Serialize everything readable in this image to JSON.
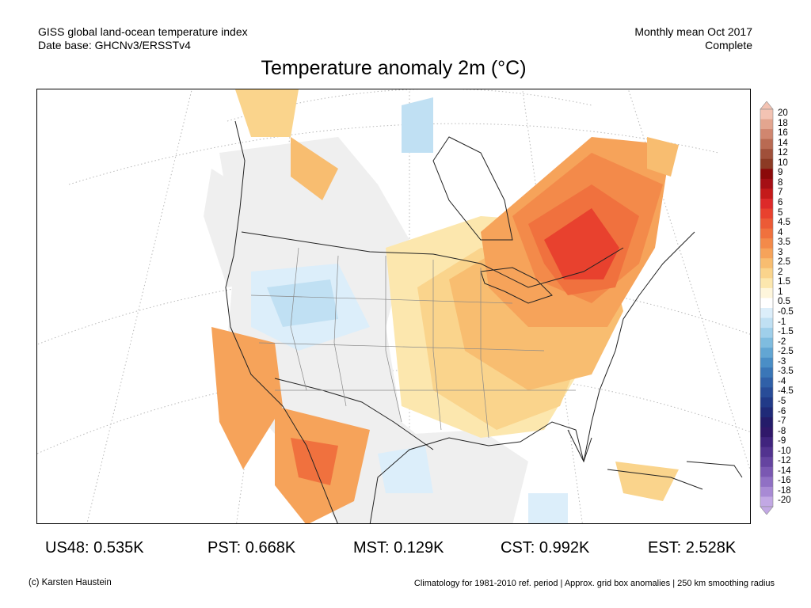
{
  "header": {
    "line1_left": "GISS global land-ocean temperature index",
    "line2_left": "Date base: GHCNv3/ERSSTv4",
    "line1_right": "Monthly mean Oct 2017",
    "line2_right": "Complete"
  },
  "title": "Temperature anomaly 2m (°C)",
  "colorbar": {
    "labels": [
      "20",
      "18",
      "16",
      "14",
      "12",
      "10",
      "9",
      "8",
      "7",
      "6",
      "5",
      "4.5",
      "4",
      "3.5",
      "3",
      "2.5",
      "2",
      "1.5",
      "1",
      "0.5",
      "-0.5",
      "-1",
      "-1.5",
      "-2",
      "-2.5",
      "-3",
      "-3.5",
      "-4",
      "-4.5",
      "-5",
      "-6",
      "-7",
      "-8",
      "-9",
      "-10",
      "-12",
      "-14",
      "-16",
      "-18",
      "-20"
    ],
    "colors": [
      "#f3c3b3",
      "#e3a58f",
      "#d0866f",
      "#b96a52",
      "#a0503a",
      "#8c3a24",
      "#8b0a0a",
      "#a50f15",
      "#c41a1a",
      "#dd2a2a",
      "#e8412e",
      "#ec5a36",
      "#f0713e",
      "#f38a4a",
      "#f6a35a",
      "#f8bd70",
      "#fad48c",
      "#fce7ae",
      "#fef6dc",
      "#ffffff",
      "#dceefa",
      "#c0e0f3",
      "#9fcfea",
      "#7fbcdf",
      "#62a6d3",
      "#4a8ec6",
      "#3a76b7",
      "#3060a8",
      "#284c98",
      "#213a88",
      "#1f2a78",
      "#241c6a",
      "#30186a",
      "#40247e",
      "#52338f",
      "#6544a0",
      "#7a58b2",
      "#9070c4",
      "#a88ad4",
      "#c2a8e4"
    ]
  },
  "stats": {
    "us48": "US48: 0.535K",
    "pst": "PST: 0.668K",
    "mst": "MST: 0.129K",
    "cst": "CST: 0.992K",
    "est": "EST: 2.528K"
  },
  "footer": {
    "credit": "(c) Karsten Haustein",
    "note": "Climatology for 1981-2010 ref. period | Approx. grid box anomalies | 250 km smoothing radius"
  }
}
